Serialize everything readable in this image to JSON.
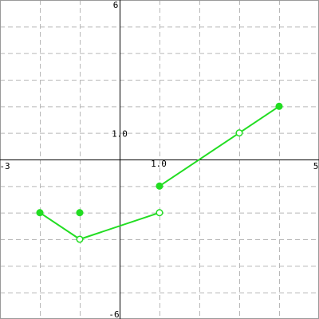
{
  "chart_data": {
    "type": "line",
    "xlim": [
      -3,
      5
    ],
    "ylim": [
      -6,
      6
    ],
    "x_grid_step": 1,
    "y_grid_step": 1,
    "grid": true,
    "tick_labels": {
      "x_min": "-3",
      "x_max": "5",
      "y_min": "-6",
      "y_max": "6",
      "x_unit": "1.0",
      "y_unit": "1.0"
    },
    "colors": {
      "series": "#22dd22",
      "grid": "#b8b8b8",
      "axis": "#000000",
      "background": "#ffffff"
    },
    "segments": [
      {
        "points": [
          [
            -2,
            -2
          ],
          [
            -1,
            -3
          ],
          [
            1,
            -2
          ]
        ]
      },
      {
        "points": [
          [
            1,
            -1
          ],
          [
            3,
            1
          ],
          [
            4,
            2
          ]
        ]
      }
    ],
    "markers": [
      {
        "x": -2,
        "y": -2,
        "filled": true
      },
      {
        "x": -1,
        "y": -3,
        "filled": false
      },
      {
        "x": -1,
        "y": -2,
        "filled": true
      },
      {
        "x": 1,
        "y": -2,
        "filled": false
      },
      {
        "x": 1,
        "y": -1,
        "filled": true
      },
      {
        "x": 3,
        "y": 1,
        "filled": false
      },
      {
        "x": 4,
        "y": 2,
        "filled": true
      }
    ]
  }
}
